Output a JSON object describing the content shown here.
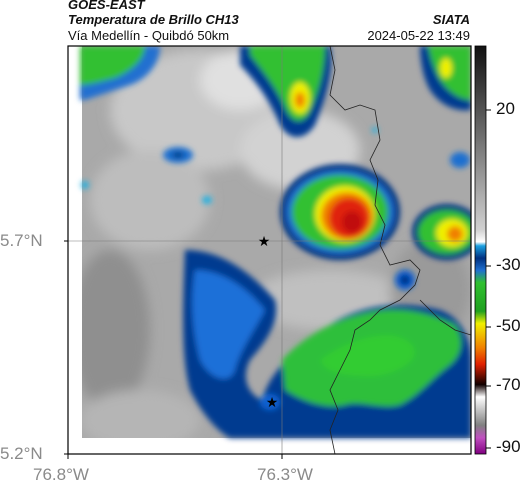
{
  "header": {
    "satellite": "GOES-EAST",
    "product": "Temperatura de Brillo CH13",
    "route": "Vía Medellín - Quibdó 50km",
    "organization": "SIATA",
    "timestamp": "2024-05-22 13:49"
  },
  "axes": {
    "lat_labels": [
      "5.7°N",
      "5.2°N"
    ],
    "lon_labels": [
      "76.8°W",
      "76.3°W"
    ]
  },
  "colorbar": {
    "tick_labels": [
      "20",
      "-30",
      "-50",
      "-70",
      "-90"
    ]
  },
  "colors": {
    "cloud_green": "#33cc33",
    "cloud_yellow": "#f0f000",
    "cloud_red": "#e02010",
    "cloud_blue": "#1060d0",
    "navy": "#002a80",
    "cyan": "#20b0e0"
  }
}
